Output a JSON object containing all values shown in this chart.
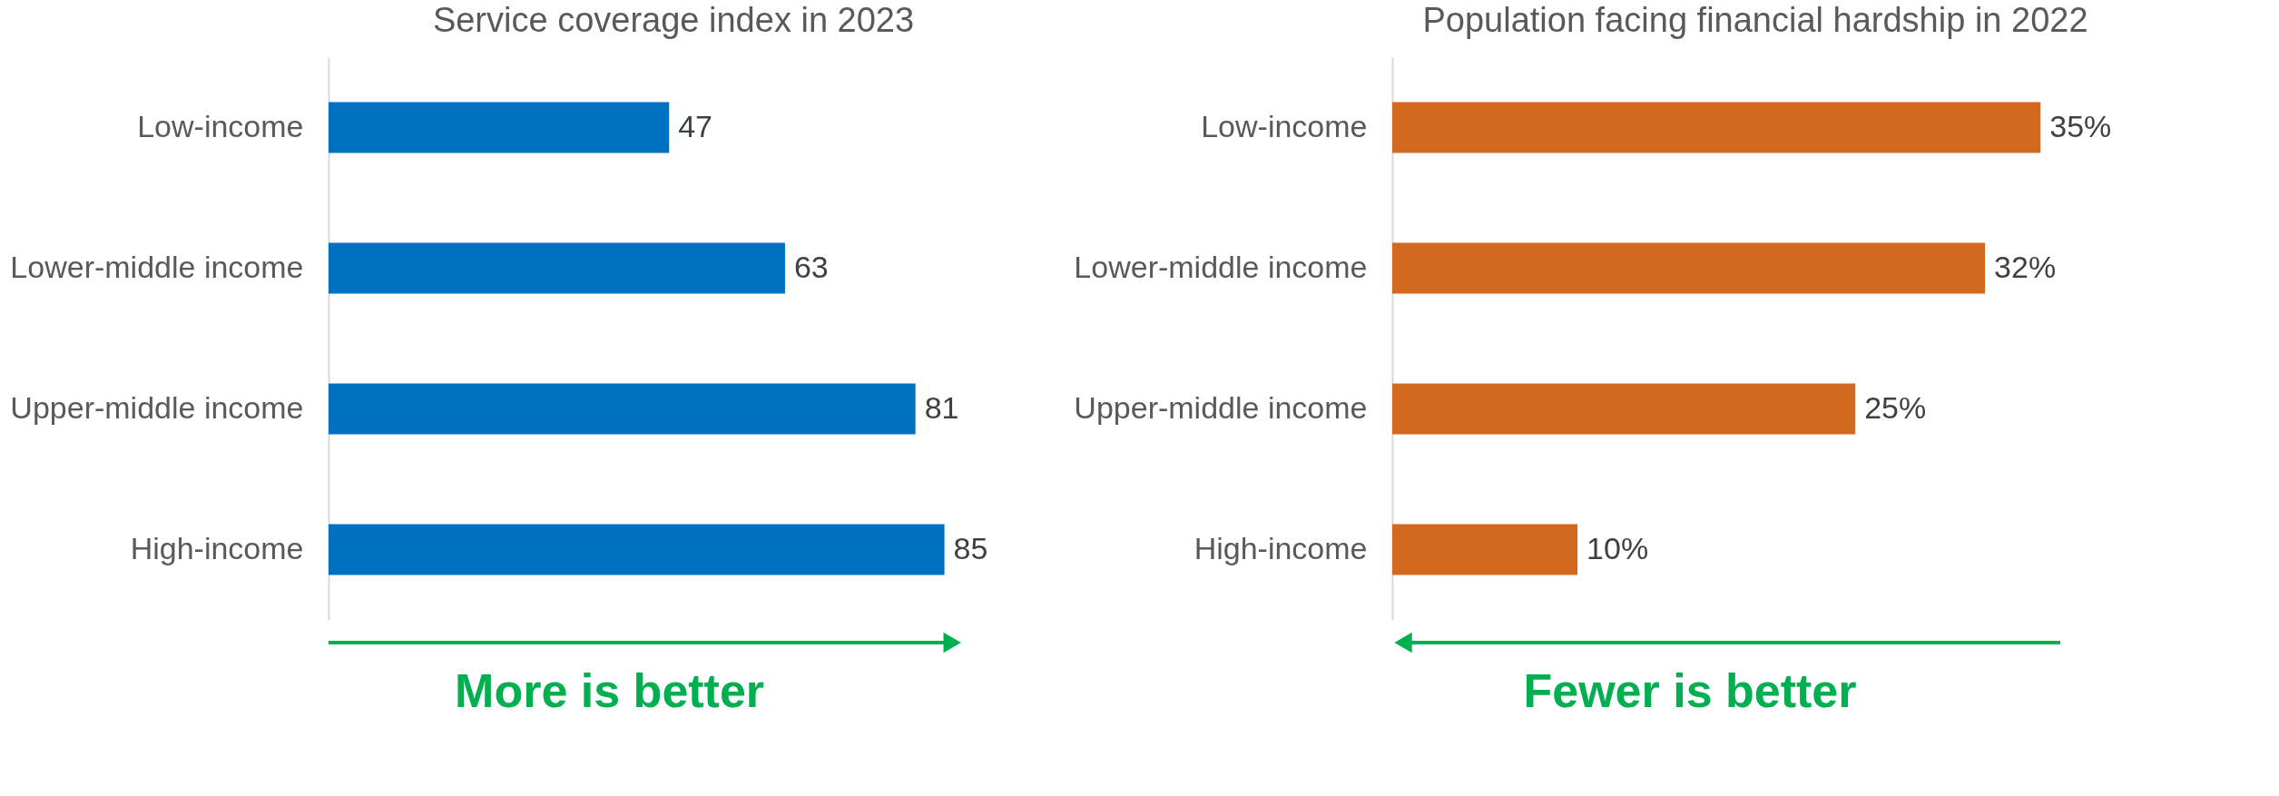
{
  "chart_data": [
    {
      "type": "bar",
      "orientation": "horizontal",
      "title": "Service coverage index in 2023",
      "categories": [
        "Low-income",
        "Lower-middle income",
        "Upper-middle income",
        "High-income"
      ],
      "values": [
        47,
        63,
        81,
        85
      ],
      "color": "#0070c0",
      "data_labels": true,
      "grid": false,
      "annotations": [
        "More is better"
      ]
    },
    {
      "type": "bar",
      "orientation": "horizontal",
      "title": "Population facing financial hardship in 2022",
      "categories": [
        "Low-income",
        "Lower-middle income",
        "Upper-middle income",
        "High-income"
      ],
      "values": [
        35,
        32,
        25,
        10
      ],
      "color": "#d2691f",
      "value_labels": [
        "35%",
        "32%",
        "25%",
        "10%"
      ],
      "grid": false,
      "annotations": [
        "Fewer is better"
      ]
    }
  ]
}
